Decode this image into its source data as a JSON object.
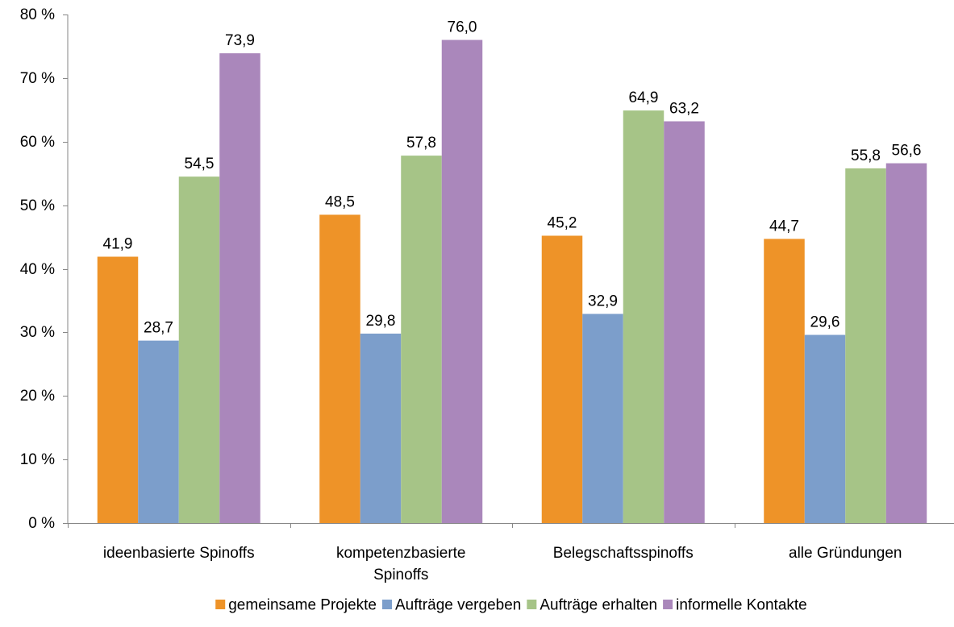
{
  "chart_data": {
    "type": "bar",
    "categories": [
      [
        "ideenbasierte Spinoffs"
      ],
      [
        "kompetenzbasierte",
        "Spinoffs"
      ],
      [
        "Belegschaftsspinoffs"
      ],
      [
        "alle Gründungen"
      ]
    ],
    "series": [
      {
        "name": "gemeinsame Projekte",
        "color": "#EE9328",
        "values": [
          41.9,
          48.5,
          45.2,
          44.7
        ]
      },
      {
        "name": "Aufträge vergeben",
        "color": "#7C9ECB",
        "values": [
          28.7,
          29.8,
          32.9,
          29.6
        ]
      },
      {
        "name": "Aufträge erhalten",
        "color": "#A6C487",
        "values": [
          54.5,
          57.8,
          64.9,
          55.8
        ]
      },
      {
        "name": "informelle Kontakte",
        "color": "#AA87BB",
        "values": [
          73.9,
          76.0,
          63.2,
          56.6
        ]
      }
    ],
    "value_labels": [
      [
        "41,9",
        "48,5",
        "45,2",
        "44,7"
      ],
      [
        "28,7",
        "29,8",
        "32,9",
        "29,6"
      ],
      [
        "54,5",
        "57,8",
        "64,9",
        "55,8"
      ],
      [
        "73,9",
        "76,0",
        "63,2",
        "56,6"
      ]
    ],
    "ylim": [
      0,
      80
    ],
    "y_ticks": [
      0,
      10,
      20,
      30,
      40,
      50,
      60,
      70,
      80
    ],
    "y_tick_labels": [
      "0 %",
      "10 %",
      "20 %",
      "30 %",
      "40 %",
      "50 %",
      "60 %",
      "70 %",
      "80 %"
    ],
    "title": "",
    "xlabel": "",
    "ylabel": "",
    "grid": false,
    "legend_position": "bottom"
  }
}
